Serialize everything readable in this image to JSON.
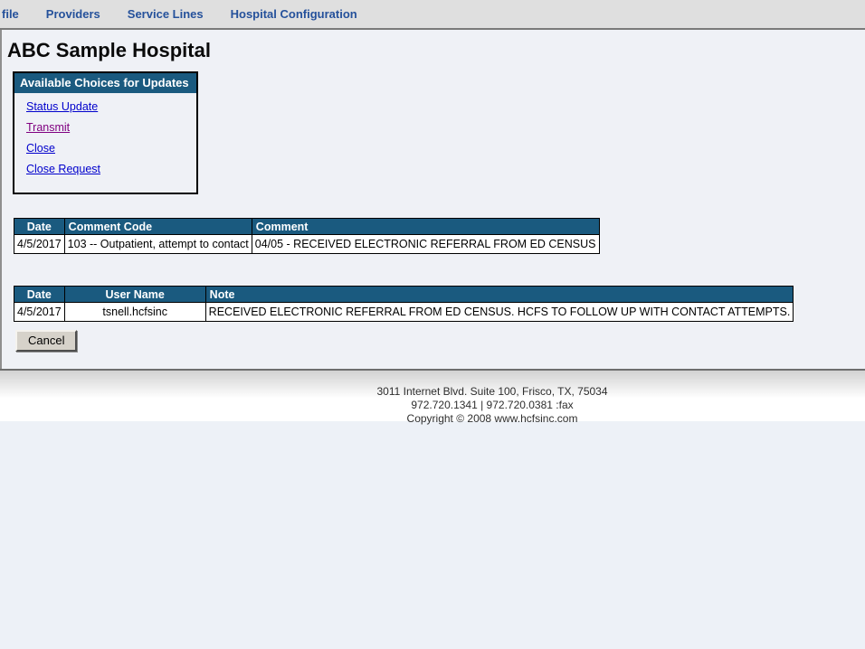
{
  "nav": {
    "items": [
      {
        "label": "file"
      },
      {
        "label": "Providers"
      },
      {
        "label": "Service Lines"
      },
      {
        "label": "Hospital Configuration"
      }
    ]
  },
  "page": {
    "title": "ABC Sample Hospital"
  },
  "choices": {
    "header": "Available Choices for Updates",
    "links": [
      {
        "label": "Status Update"
      },
      {
        "label": "Transmit"
      },
      {
        "label": "Close"
      },
      {
        "label": "Close Request"
      }
    ]
  },
  "comments_table": {
    "headers": [
      "Date",
      "Comment Code",
      "Comment"
    ],
    "rows": [
      {
        "date": "4/5/2017",
        "comment_code": "103 -- Outpatient, attempt to contact",
        "comment": "04/05 - RECEIVED ELECTRONIC REFERRAL FROM ED CENSUS"
      }
    ]
  },
  "notes_table": {
    "headers": [
      "Date",
      "User Name",
      "Note"
    ],
    "rows": [
      {
        "date": "4/5/2017",
        "user_name": "tsnell.hcfsinc",
        "note": "RECEIVED ELECTRONIC REFERRAL FROM ED CENSUS. HCFS TO FOLLOW UP WITH CONTACT ATTEMPTS."
      }
    ]
  },
  "buttons": {
    "cancel": "Cancel"
  },
  "footer": {
    "address": "3011 Internet Blvd. Suite 100, Frisco, TX, 75034",
    "phone": "972.720.1341 | 972.720.0381 :fax",
    "copyright": "Copyright © 2008 www.hcfsinc.com"
  },
  "colors": {
    "header_blue": "#1a5a7f",
    "nav_text_blue": "#25519b",
    "link_blue": "#0000cc",
    "link_visited_purple": "#800080",
    "page_background": "#edf1f7",
    "nav_background": "#dfdfdf"
  }
}
